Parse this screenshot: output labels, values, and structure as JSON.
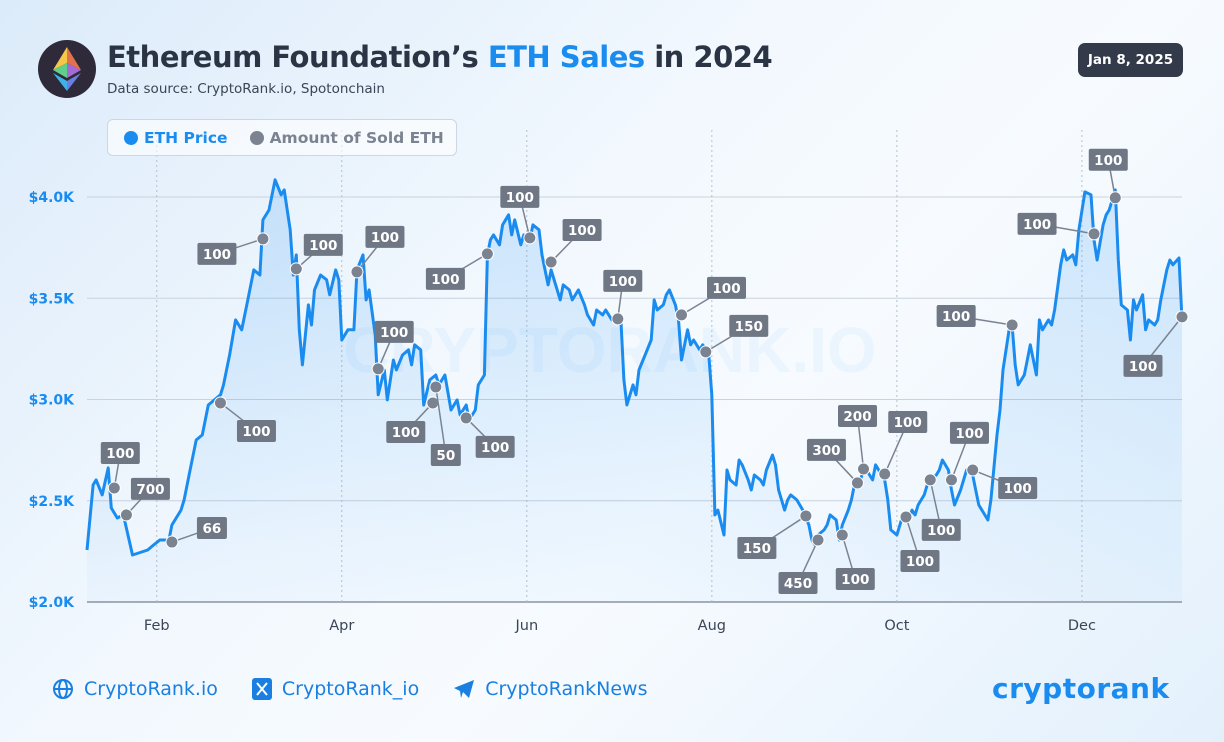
{
  "header": {
    "title_part1": "Ethereum Foundation’s ",
    "title_highlight": "ETH Sales",
    "title_part2": " in 2024",
    "subtitle": "Data source: CryptoRank.io, Spotonchain",
    "date_badge": "Jan 8, 2025"
  },
  "legend": {
    "price_label": "ETH Price",
    "sold_label": "Amount of Sold ETH"
  },
  "watermark": "CRYPTORANK.IO",
  "footer": {
    "links": [
      "CryptoRank.io",
      "CryptoRank_io",
      "CryptoRankNews"
    ],
    "icons": [
      "globe-icon",
      "x-icon",
      "telegram-icon"
    ],
    "brand": "cryptorank"
  },
  "colors": {
    "price": "#1a8cf0",
    "marker": "#7b8391",
    "label_bg": "#6f7684",
    "title": "#2b3444"
  },
  "chart_data": {
    "type": "line",
    "title": "Ethereum Foundation’s ETH Sales in 2024",
    "xlabel": "",
    "ylabel": "",
    "x_unit": "day of 2024 (0 = Jan 1)",
    "xlim": [
      8,
      369
    ],
    "ylim": [
      2000,
      4000
    ],
    "grid": true,
    "legend_position": "top-left",
    "y_ticks": [
      {
        "value": 4000,
        "label": "$4.0K"
      },
      {
        "value": 3500,
        "label": "$3.5K"
      },
      {
        "value": 3000,
        "label": "$3.0K"
      },
      {
        "value": 2500,
        "label": "$2.5K"
      },
      {
        "value": 2000,
        "label": "$2.0K"
      }
    ],
    "x_ticks": [
      {
        "value": 31,
        "label": "Feb"
      },
      {
        "value": 92,
        "label": "Apr"
      },
      {
        "value": 153,
        "label": "Jun"
      },
      {
        "value": 214,
        "label": "Aug"
      },
      {
        "value": 275,
        "label": "Oct"
      },
      {
        "value": 336,
        "label": "Dec"
      }
    ],
    "series": [
      {
        "name": "ETH Price",
        "days": [
          8,
          10,
          11,
          13,
          15,
          16,
          18,
          20,
          23,
          25,
          28,
          30,
          32,
          35,
          36,
          39,
          40,
          42,
          44,
          46,
          48,
          50,
          52,
          53,
          55,
          57,
          59,
          61,
          63,
          65,
          66,
          68,
          70,
          72,
          73,
          75,
          76,
          77,
          78,
          79,
          81,
          82,
          83,
          85,
          87,
          88,
          90,
          91,
          92,
          94,
          96,
          97,
          99,
          100,
          101,
          103,
          104,
          106,
          107,
          109,
          110,
          112,
          114,
          115,
          116,
          118,
          119,
          121,
          123,
          124,
          126,
          128,
          130,
          131,
          133,
          134,
          136,
          137,
          139,
          140,
          141,
          142,
          144,
          145,
          147,
          148,
          149,
          151,
          152,
          154,
          155,
          157,
          158,
          160,
          161,
          163,
          164,
          165,
          167,
          168,
          170,
          172,
          173,
          175,
          176,
          178,
          179,
          181,
          182,
          184,
          185,
          186,
          188,
          189,
          190,
          192,
          194,
          195,
          196,
          198,
          199,
          200,
          202,
          203,
          204,
          206,
          207,
          208,
          210,
          211,
          213,
          214,
          215,
          216,
          218,
          219,
          220,
          222,
          223,
          224,
          226,
          227,
          228,
          230,
          231,
          232,
          234,
          235,
          236,
          238,
          239,
          240,
          242,
          243,
          244,
          246,
          247,
          248,
          249,
          251,
          252,
          253,
          255,
          256,
          257,
          259,
          260,
          261,
          263,
          264,
          265,
          267,
          268,
          269,
          271,
          272,
          273,
          275,
          276,
          277,
          279,
          280,
          281,
          282,
          284,
          285,
          286,
          288,
          289,
          290,
          292,
          293,
          294,
          296,
          297,
          298,
          300,
          301,
          302,
          304,
          305,
          306,
          308,
          309,
          310,
          312,
          313,
          314,
          315,
          317,
          318,
          319,
          321,
          322,
          323,
          325,
          326,
          327,
          329,
          330,
          331,
          333,
          334,
          335,
          337,
          339,
          340,
          341,
          343,
          344,
          345,
          347,
          348,
          349,
          351,
          352,
          353,
          354,
          356,
          357,
          358,
          360,
          361,
          362,
          364,
          365,
          366,
          368,
          369
        ],
        "values": [
          2257,
          2578,
          2603,
          2529,
          2662,
          2464,
          2415,
          2430,
          2232,
          2242,
          2257,
          2282,
          2306,
          2306,
          2380,
          2454,
          2504,
          2652,
          2800,
          2825,
          2973,
          2998,
          3023,
          3072,
          3220,
          3393,
          3344,
          3492,
          3640,
          3615,
          3887,
          3936,
          4085,
          4011,
          4035,
          3838,
          3615,
          3714,
          3344,
          3171,
          3467,
          3368,
          3541,
          3615,
          3591,
          3517,
          3640,
          3591,
          3294,
          3344,
          3344,
          3640,
          3714,
          3492,
          3541,
          3319,
          3023,
          3146,
          2998,
          3195,
          3146,
          3220,
          3245,
          3171,
          3270,
          3245,
          2973,
          3097,
          3121,
          3072,
          3121,
          2948,
          2998,
          2924,
          2973,
          2899,
          2948,
          3072,
          3121,
          3714,
          3788,
          3813,
          3764,
          3862,
          3912,
          3813,
          3887,
          3764,
          3813,
          3788,
          3862,
          3838,
          3714,
          3566,
          3640,
          3541,
          3492,
          3566,
          3541,
          3492,
          3541,
          3467,
          3418,
          3368,
          3442,
          3418,
          3442,
          3393,
          3418,
          3393,
          3097,
          2973,
          3072,
          3023,
          3146,
          3220,
          3294,
          3492,
          3442,
          3467,
          3517,
          3541,
          3467,
          3393,
          3195,
          3344,
          3270,
          3294,
          3245,
          3270,
          3220,
          3023,
          2430,
          2454,
          2331,
          2652,
          2603,
          2578,
          2701,
          2677,
          2603,
          2553,
          2627,
          2603,
          2578,
          2652,
          2726,
          2677,
          2553,
          2454,
          2504,
          2529,
          2504,
          2479,
          2454,
          2380,
          2306,
          2282,
          2331,
          2356,
          2380,
          2430,
          2405,
          2306,
          2380,
          2454,
          2504,
          2578,
          2603,
          2652,
          2652,
          2603,
          2677,
          2652,
          2603,
          2504,
          2356,
          2331,
          2380,
          2430,
          2405,
          2454,
          2430,
          2479,
          2529,
          2578,
          2603,
          2627,
          2652,
          2701,
          2652,
          2553,
          2479,
          2553,
          2603,
          2652,
          2627,
          2553,
          2479,
          2430,
          2405,
          2504,
          2825,
          2948,
          3146,
          3344,
          3368,
          3171,
          3072,
          3121,
          3195,
          3270,
          3121,
          3393,
          3344,
          3393,
          3368,
          3442,
          3665,
          3739,
          3689,
          3714,
          3665,
          3838,
          4025,
          4011,
          3788,
          3689,
          3862,
          3912,
          3936,
          4035,
          3689,
          3467,
          3442,
          3294,
          3492,
          3442,
          3517,
          3344,
          3393,
          3368,
          3393,
          3492,
          3640,
          3689,
          3665,
          3699,
          3393
        ]
      },
      {
        "name": "Amount of Sold ETH",
        "points": [
          {
            "day": 17,
            "price": 2563,
            "amount": "100"
          },
          {
            "day": 21,
            "price": 2430,
            "amount": "700"
          },
          {
            "day": 36,
            "price": 2296,
            "amount": "66"
          },
          {
            "day": 52,
            "price": 2983,
            "amount": "100"
          },
          {
            "day": 66,
            "price": 3793,
            "amount": "100"
          },
          {
            "day": 77,
            "price": 3645,
            "amount": "100"
          },
          {
            "day": 97,
            "price": 3630,
            "amount": "100"
          },
          {
            "day": 104,
            "price": 3151,
            "amount": "100"
          },
          {
            "day": 122,
            "price": 2983,
            "amount": "100"
          },
          {
            "day": 123,
            "price": 3062,
            "amount": "50"
          },
          {
            "day": 133,
            "price": 2909,
            "amount": "100"
          },
          {
            "day": 140,
            "price": 3719,
            "amount": "100"
          },
          {
            "day": 154,
            "price": 3798,
            "amount": "100"
          },
          {
            "day": 161,
            "price": 3679,
            "amount": "100"
          },
          {
            "day": 183,
            "price": 3398,
            "amount": "100"
          },
          {
            "day": 204,
            "price": 3418,
            "amount": "100"
          },
          {
            "day": 212,
            "price": 3235,
            "amount": "150"
          },
          {
            "day": 245,
            "price": 2425,
            "amount": "150"
          },
          {
            "day": 249,
            "price": 2306,
            "amount": "450"
          },
          {
            "day": 257,
            "price": 2331,
            "amount": "100"
          },
          {
            "day": 262,
            "price": 2588,
            "amount": "300"
          },
          {
            "day": 264,
            "price": 2657,
            "amount": "200"
          },
          {
            "day": 271,
            "price": 2632,
            "amount": "100"
          },
          {
            "day": 278,
            "price": 2420,
            "amount": "100"
          },
          {
            "day": 286,
            "price": 2603,
            "amount": "100"
          },
          {
            "day": 293,
            "price": 2603,
            "amount": "100"
          },
          {
            "day": 300,
            "price": 2652,
            "amount": "100"
          },
          {
            "day": 313,
            "price": 3368,
            "amount": "100"
          },
          {
            "day": 340,
            "price": 3818,
            "amount": "100"
          },
          {
            "day": 347,
            "price": 3996,
            "amount": "100"
          },
          {
            "day": 369,
            "price": 3408,
            "amount": "100"
          }
        ]
      }
    ]
  }
}
